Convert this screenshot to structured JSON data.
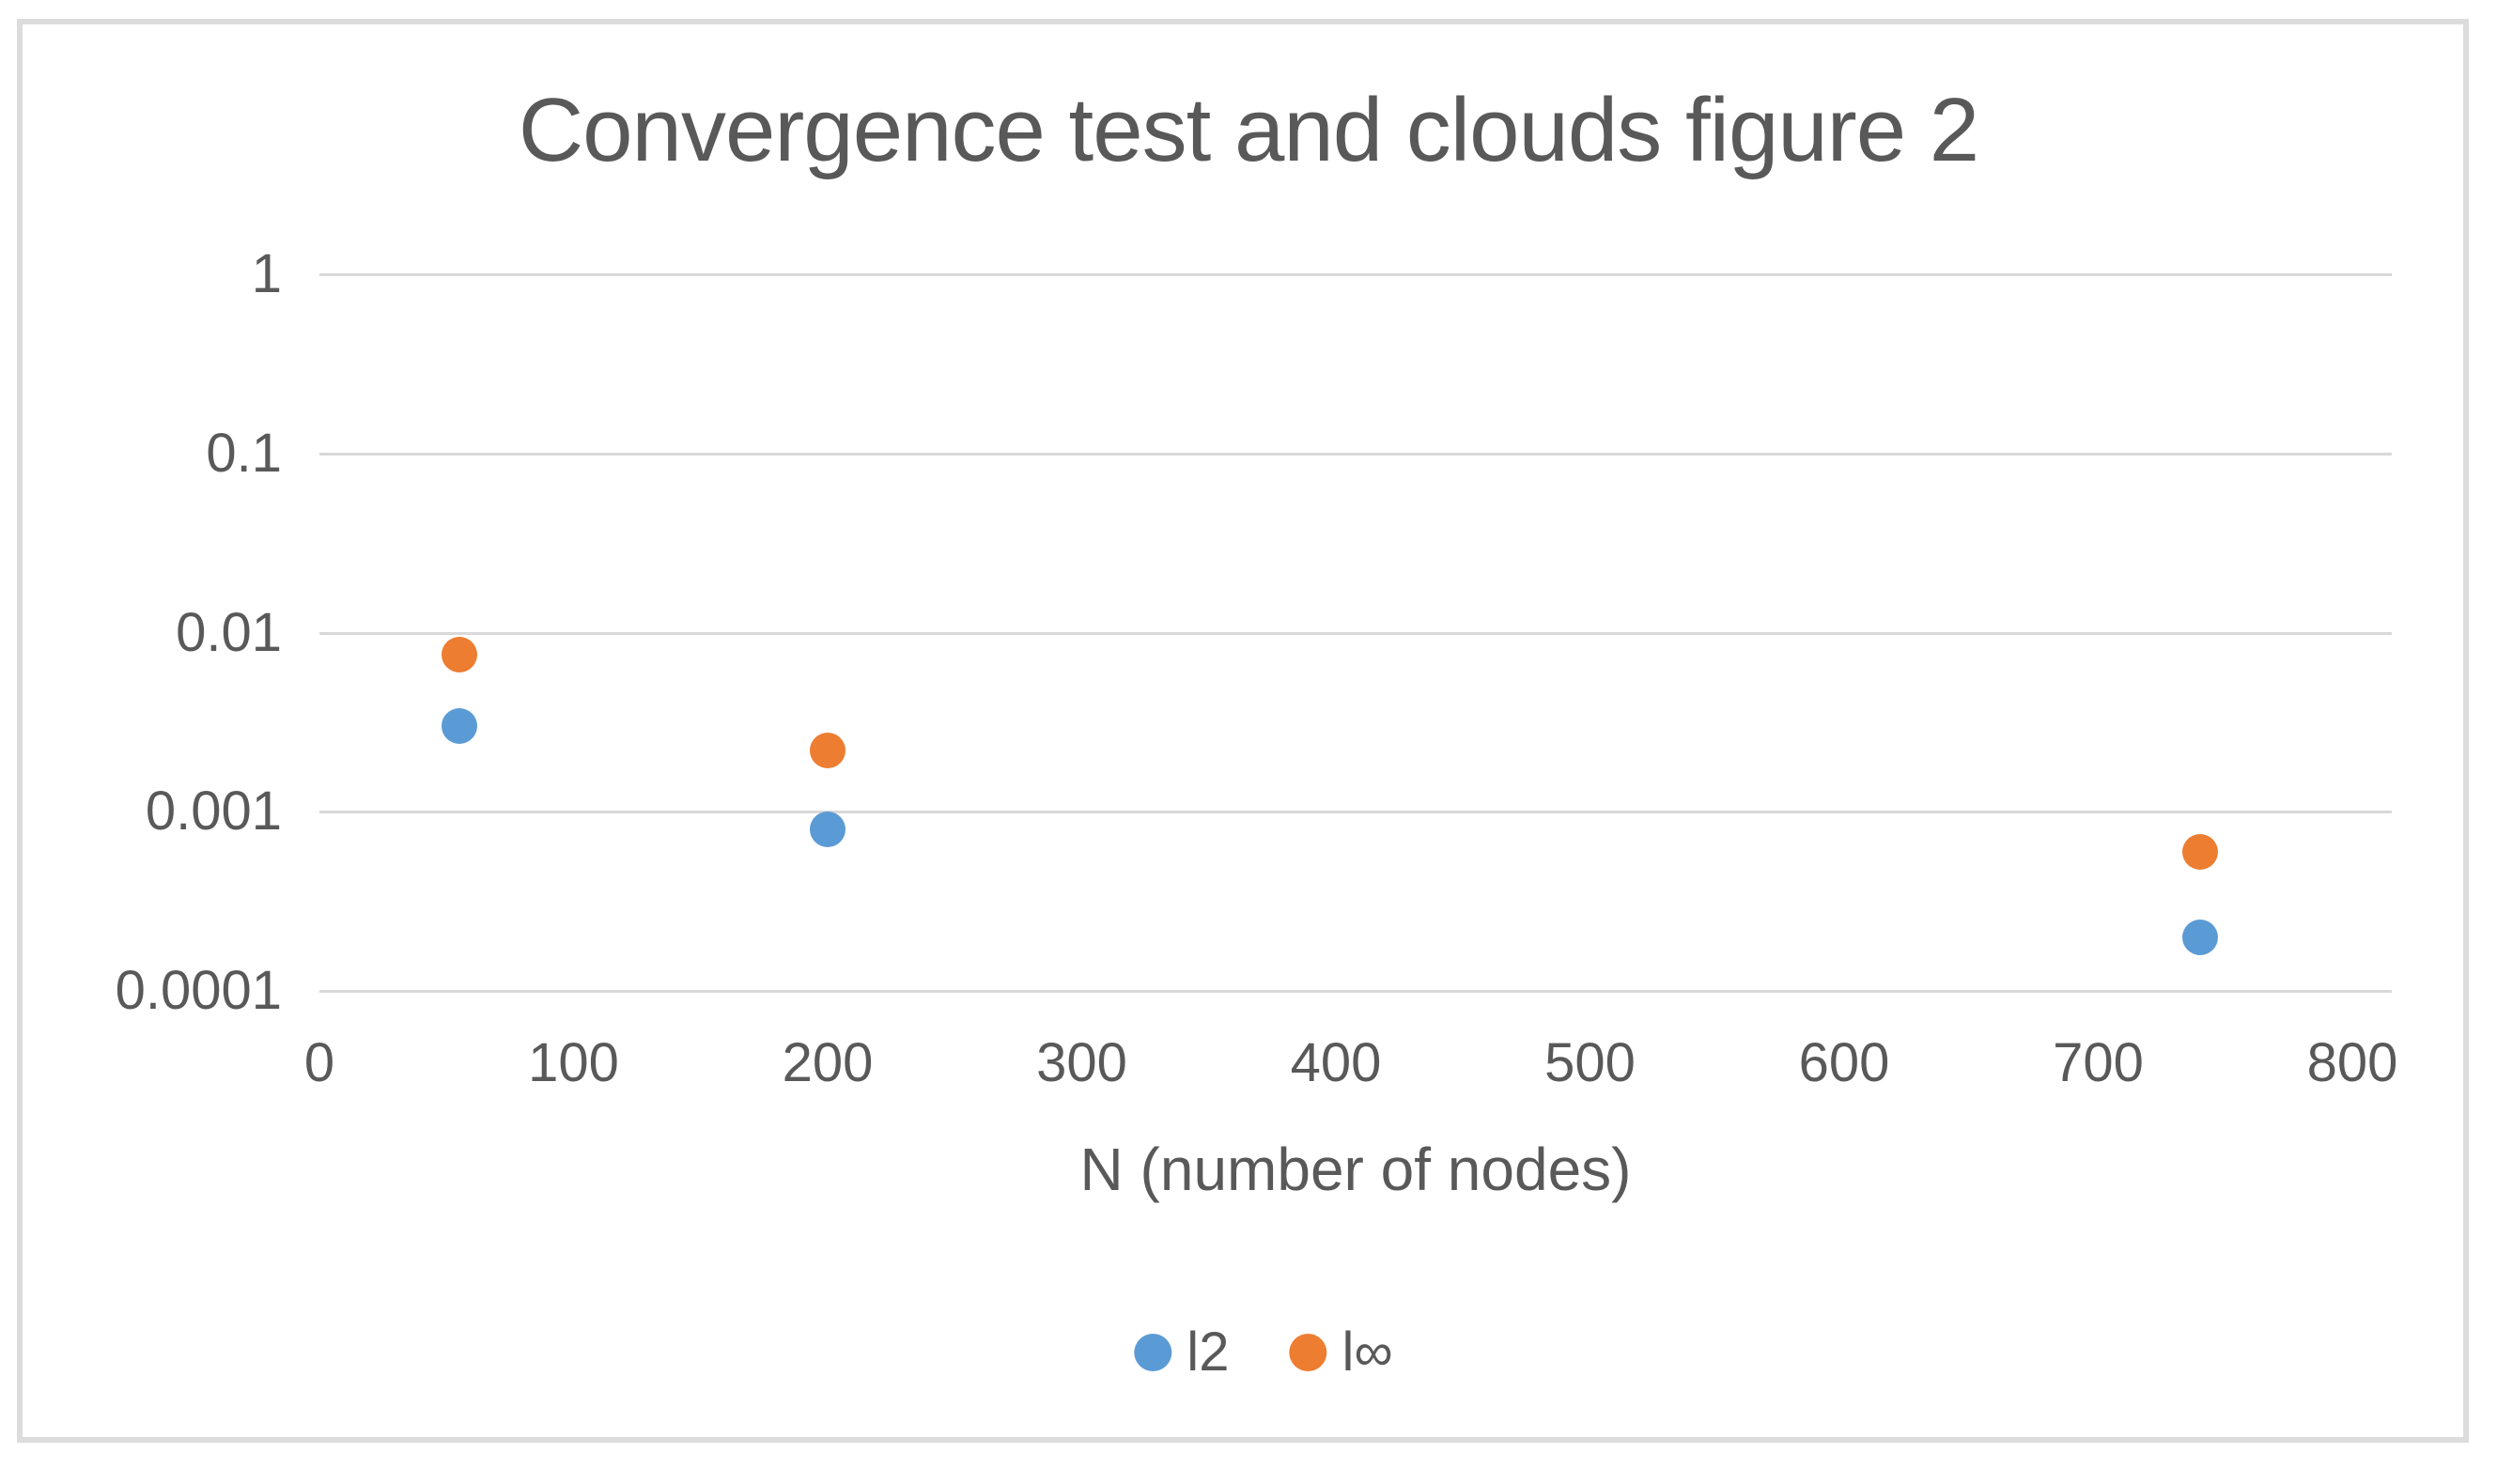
{
  "colors": {
    "text": "#595959",
    "gridline": "#d9d9d9",
    "frame_border": "#dcdcdc",
    "background": "#ffffff"
  },
  "chart_data": {
    "type": "scatter",
    "title": "Convergence test and clouds figure 2",
    "xlabel": "N (number of nodes)",
    "ylabel": "",
    "grid": true,
    "legend_position": "bottom",
    "x_axis": {
      "min": 0,
      "max": 800,
      "ticks": [
        0,
        100,
        200,
        300,
        400,
        500,
        600,
        700,
        800
      ]
    },
    "y_axis": {
      "scale": "log",
      "min": 0.0001,
      "max": 1,
      "tick_labels": [
        "1",
        "0.1",
        "0.01",
        "0.001",
        "0.0001"
      ],
      "tick_values": [
        1,
        0.1,
        0.01,
        0.001,
        0.0001
      ]
    },
    "series": [
      {
        "name": "l2",
        "color": "#5B9BD5",
        "points": [
          {
            "x": 55,
            "y": 0.003
          },
          {
            "x": 200,
            "y": 0.0008
          },
          {
            "x": 740,
            "y": 0.0002
          }
        ]
      },
      {
        "name": "l∞",
        "color": "#ED7D31",
        "points": [
          {
            "x": 55,
            "y": 0.0075
          },
          {
            "x": 200,
            "y": 0.0022
          },
          {
            "x": 740,
            "y": 0.0006
          }
        ]
      }
    ]
  }
}
